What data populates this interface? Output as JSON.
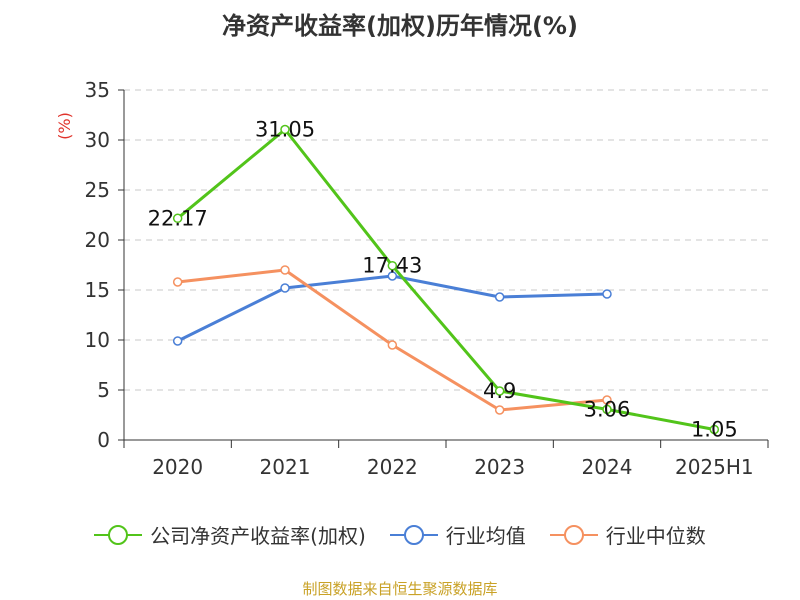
{
  "title": "净资产收益率(加权)历年情况(%)",
  "source_note": "制图数据来自恒生聚源数据库",
  "colors": {
    "series_company": "#52c41a",
    "series_industry_avg": "#4a7fd6",
    "series_industry_median": "#f59160",
    "grid": "#c8c8c8",
    "axis": "#333333",
    "unit_label": "#e0332b"
  },
  "chart_data": {
    "type": "line",
    "title": "净资产收益率(加权)历年情况(%)",
    "ylabel": "(%)",
    "xlabel": "",
    "categories": [
      "2020",
      "2021",
      "2022",
      "2023",
      "2024",
      "2025H1"
    ],
    "ylim": [
      0,
      35
    ],
    "yticks": [
      "0",
      "5",
      "10",
      "15",
      "20",
      "25",
      "30",
      "35"
    ],
    "grid": "horizontal dashed",
    "legend_position": "bottom",
    "series": [
      {
        "name": "公司净资产收益率(加权)",
        "values": [
          22.17,
          31.05,
          17.43,
          4.9,
          3.06,
          1.05
        ],
        "labels": [
          "22.17",
          "31.05",
          "17.43",
          "4.9",
          "3.06",
          "1.05"
        ]
      },
      {
        "name": "行业均值",
        "values": [
          9.9,
          15.2,
          16.4,
          14.3,
          14.6,
          null
        ]
      },
      {
        "name": "行业中位数",
        "values": [
          15.8,
          17.0,
          9.5,
          3.0,
          4.0,
          null
        ]
      }
    ]
  }
}
